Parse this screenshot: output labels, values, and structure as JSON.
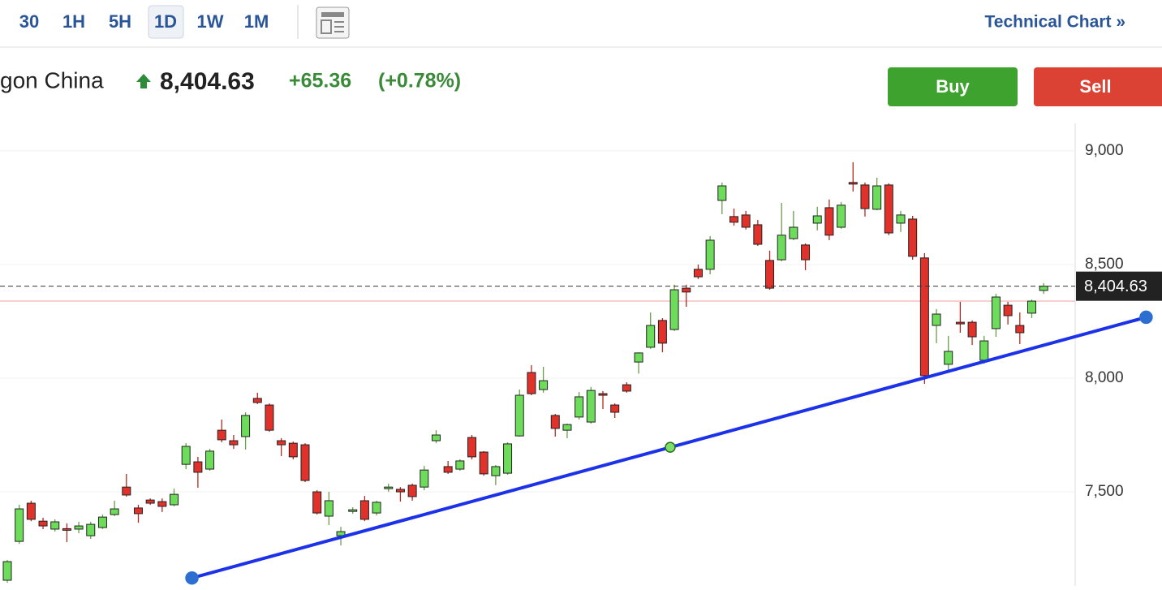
{
  "toolbar": {
    "intervals": [
      "30",
      "1H",
      "5H",
      "1D",
      "1W",
      "1M"
    ],
    "selected": "1D",
    "link": "Technical Chart »"
  },
  "quote": {
    "name": "gon China",
    "price": "8,404.63",
    "change": "+65.36",
    "change_pct": "(+0.78%)",
    "buy": "Buy",
    "sell": "Sell"
  },
  "chart_data": {
    "type": "candlestick",
    "up_color": "#6ddc5b",
    "down_color": "#e0322b",
    "ylim": [
      7086,
      9121
    ],
    "yticks": [
      {
        "value": 7500,
        "label": "7,500"
      },
      {
        "value": 8000,
        "label": "8,000"
      },
      {
        "value": 8500,
        "label": "8,500"
      },
      {
        "value": 9000,
        "label": "9,000"
      }
    ],
    "grid": true,
    "last_price": {
      "value": 8404.63,
      "label": "8,404.63"
    },
    "prev_close": 8339.27,
    "trendline": {
      "color": "#1c32e8",
      "x": [
        15.5,
        55.65,
        95.6
      ],
      "y": [
        7121,
        7696,
        8268
      ]
    },
    "candles": [
      [
        7111,
        7200,
        7100,
        7193
      ],
      [
        7282,
        7443,
        7271,
        7425
      ],
      [
        7450,
        7461,
        7371,
        7379
      ],
      [
        7371,
        7386,
        7336,
        7350
      ],
      [
        7336,
        7379,
        7325,
        7368
      ],
      [
        7338,
        7361,
        7279,
        7336
      ],
      [
        7336,
        7368,
        7318,
        7350
      ],
      [
        7307,
        7368,
        7293,
        7357
      ],
      [
        7343,
        7400,
        7336,
        7389
      ],
      [
        7400,
        7461,
        7393,
        7425
      ],
      [
        7521,
        7579,
        7479,
        7486
      ],
      [
        7429,
        7443,
        7364,
        7404
      ],
      [
        7464,
        7471,
        7443,
        7450
      ],
      [
        7457,
        7471,
        7411,
        7436
      ],
      [
        7443,
        7514,
        7436,
        7489
      ],
      [
        7621,
        7714,
        7600,
        7700
      ],
      [
        7632,
        7654,
        7518,
        7586
      ],
      [
        7600,
        7689,
        7593,
        7679
      ],
      [
        7771,
        7818,
        7718,
        7729
      ],
      [
        7725,
        7750,
        7689,
        7707
      ],
      [
        7743,
        7850,
        7686,
        7836
      ],
      [
        7911,
        7936,
        7886,
        7893
      ],
      [
        7882,
        7889,
        7764,
        7771
      ],
      [
        7725,
        7736,
        7657,
        7707
      ],
      [
        7714,
        7721,
        7643,
        7654
      ],
      [
        7707,
        7714,
        7543,
        7550
      ],
      [
        7500,
        7507,
        7400,
        7407
      ],
      [
        7393,
        7500,
        7354,
        7461
      ],
      [
        7307,
        7346,
        7264,
        7325
      ],
      [
        7418,
        7432,
        7404,
        7421
      ],
      [
        7461,
        7482,
        7371,
        7379
      ],
      [
        7407,
        7461,
        7396,
        7454
      ],
      [
        7514,
        7536,
        7500,
        7521
      ],
      [
        7511,
        7521,
        7457,
        7500
      ],
      [
        7529,
        7536,
        7461,
        7479
      ],
      [
        7521,
        7614,
        7507,
        7596
      ],
      [
        7725,
        7771,
        7714,
        7750
      ],
      [
        7611,
        7636,
        7579,
        7586
      ],
      [
        7600,
        7643,
        7593,
        7636
      ],
      [
        7739,
        7750,
        7643,
        7654
      ],
      [
        7675,
        7679,
        7571,
        7579
      ],
      [
        7571,
        7618,
        7529,
        7611
      ],
      [
        7582,
        7718,
        7575,
        7711
      ],
      [
        7746,
        7950,
        7743,
        7925
      ],
      [
        8025,
        8057,
        7925,
        7932
      ],
      [
        7950,
        8050,
        7936,
        7989
      ],
      [
        7836,
        7843,
        7743,
        7779
      ],
      [
        7771,
        7800,
        7736,
        7796
      ],
      [
        7829,
        7939,
        7818,
        7918
      ],
      [
        7807,
        7961,
        7800,
        7946
      ],
      [
        7932,
        7943,
        7864,
        7929
      ],
      [
        7882,
        7889,
        7825,
        7850
      ],
      [
        7971,
        7982,
        7936,
        7943
      ],
      [
        8071,
        8114,
        8020,
        8111
      ],
      [
        8136,
        8289,
        8129,
        8232
      ],
      [
        8254,
        8264,
        8114,
        8154
      ],
      [
        8214,
        8411,
        8207,
        8389
      ],
      [
        8396,
        8411,
        8314,
        8379
      ],
      [
        8479,
        8500,
        8436,
        8446
      ],
      [
        8479,
        8625,
        8457,
        8607
      ],
      [
        8782,
        8861,
        8721,
        8846
      ],
      [
        8711,
        8746,
        8671,
        8686
      ],
      [
        8718,
        8736,
        8654,
        8664
      ],
      [
        8675,
        8696,
        8582,
        8589
      ],
      [
        8518,
        8561,
        8389,
        8396
      ],
      [
        8521,
        8771,
        8514,
        8629
      ],
      [
        8614,
        8736,
        8607,
        8664
      ],
      [
        8586,
        8593,
        8475,
        8521
      ],
      [
        8682,
        8754,
        8650,
        8714
      ],
      [
        8750,
        8786,
        8607,
        8629
      ],
      [
        8664,
        8775,
        8657,
        8761
      ],
      [
        8861,
        8950,
        8821,
        8857
      ],
      [
        8850,
        8861,
        8711,
        8746
      ],
      [
        8743,
        8882,
        8739,
        8846
      ],
      [
        8850,
        8857,
        8629,
        8639
      ],
      [
        8682,
        8736,
        8643,
        8718
      ],
      [
        8700,
        8714,
        8521,
        8536
      ],
      [
        8529,
        8550,
        7975,
        8011
      ],
      [
        8232,
        8304,
        8154,
        8282
      ],
      [
        8061,
        8186,
        8032,
        8118
      ],
      [
        8246,
        8336,
        8200,
        8243
      ],
      [
        8246,
        8254,
        8146,
        8182
      ],
      [
        8079,
        8186,
        8064,
        8164
      ],
      [
        8218,
        8371,
        8182,
        8357
      ],
      [
        8321,
        8336,
        8236,
        8275
      ],
      [
        8232,
        8289,
        8150,
        8200
      ],
      [
        8286,
        8346,
        8264,
        8339
      ],
      [
        8386,
        8418,
        8371,
        8404.63
      ]
    ]
  }
}
